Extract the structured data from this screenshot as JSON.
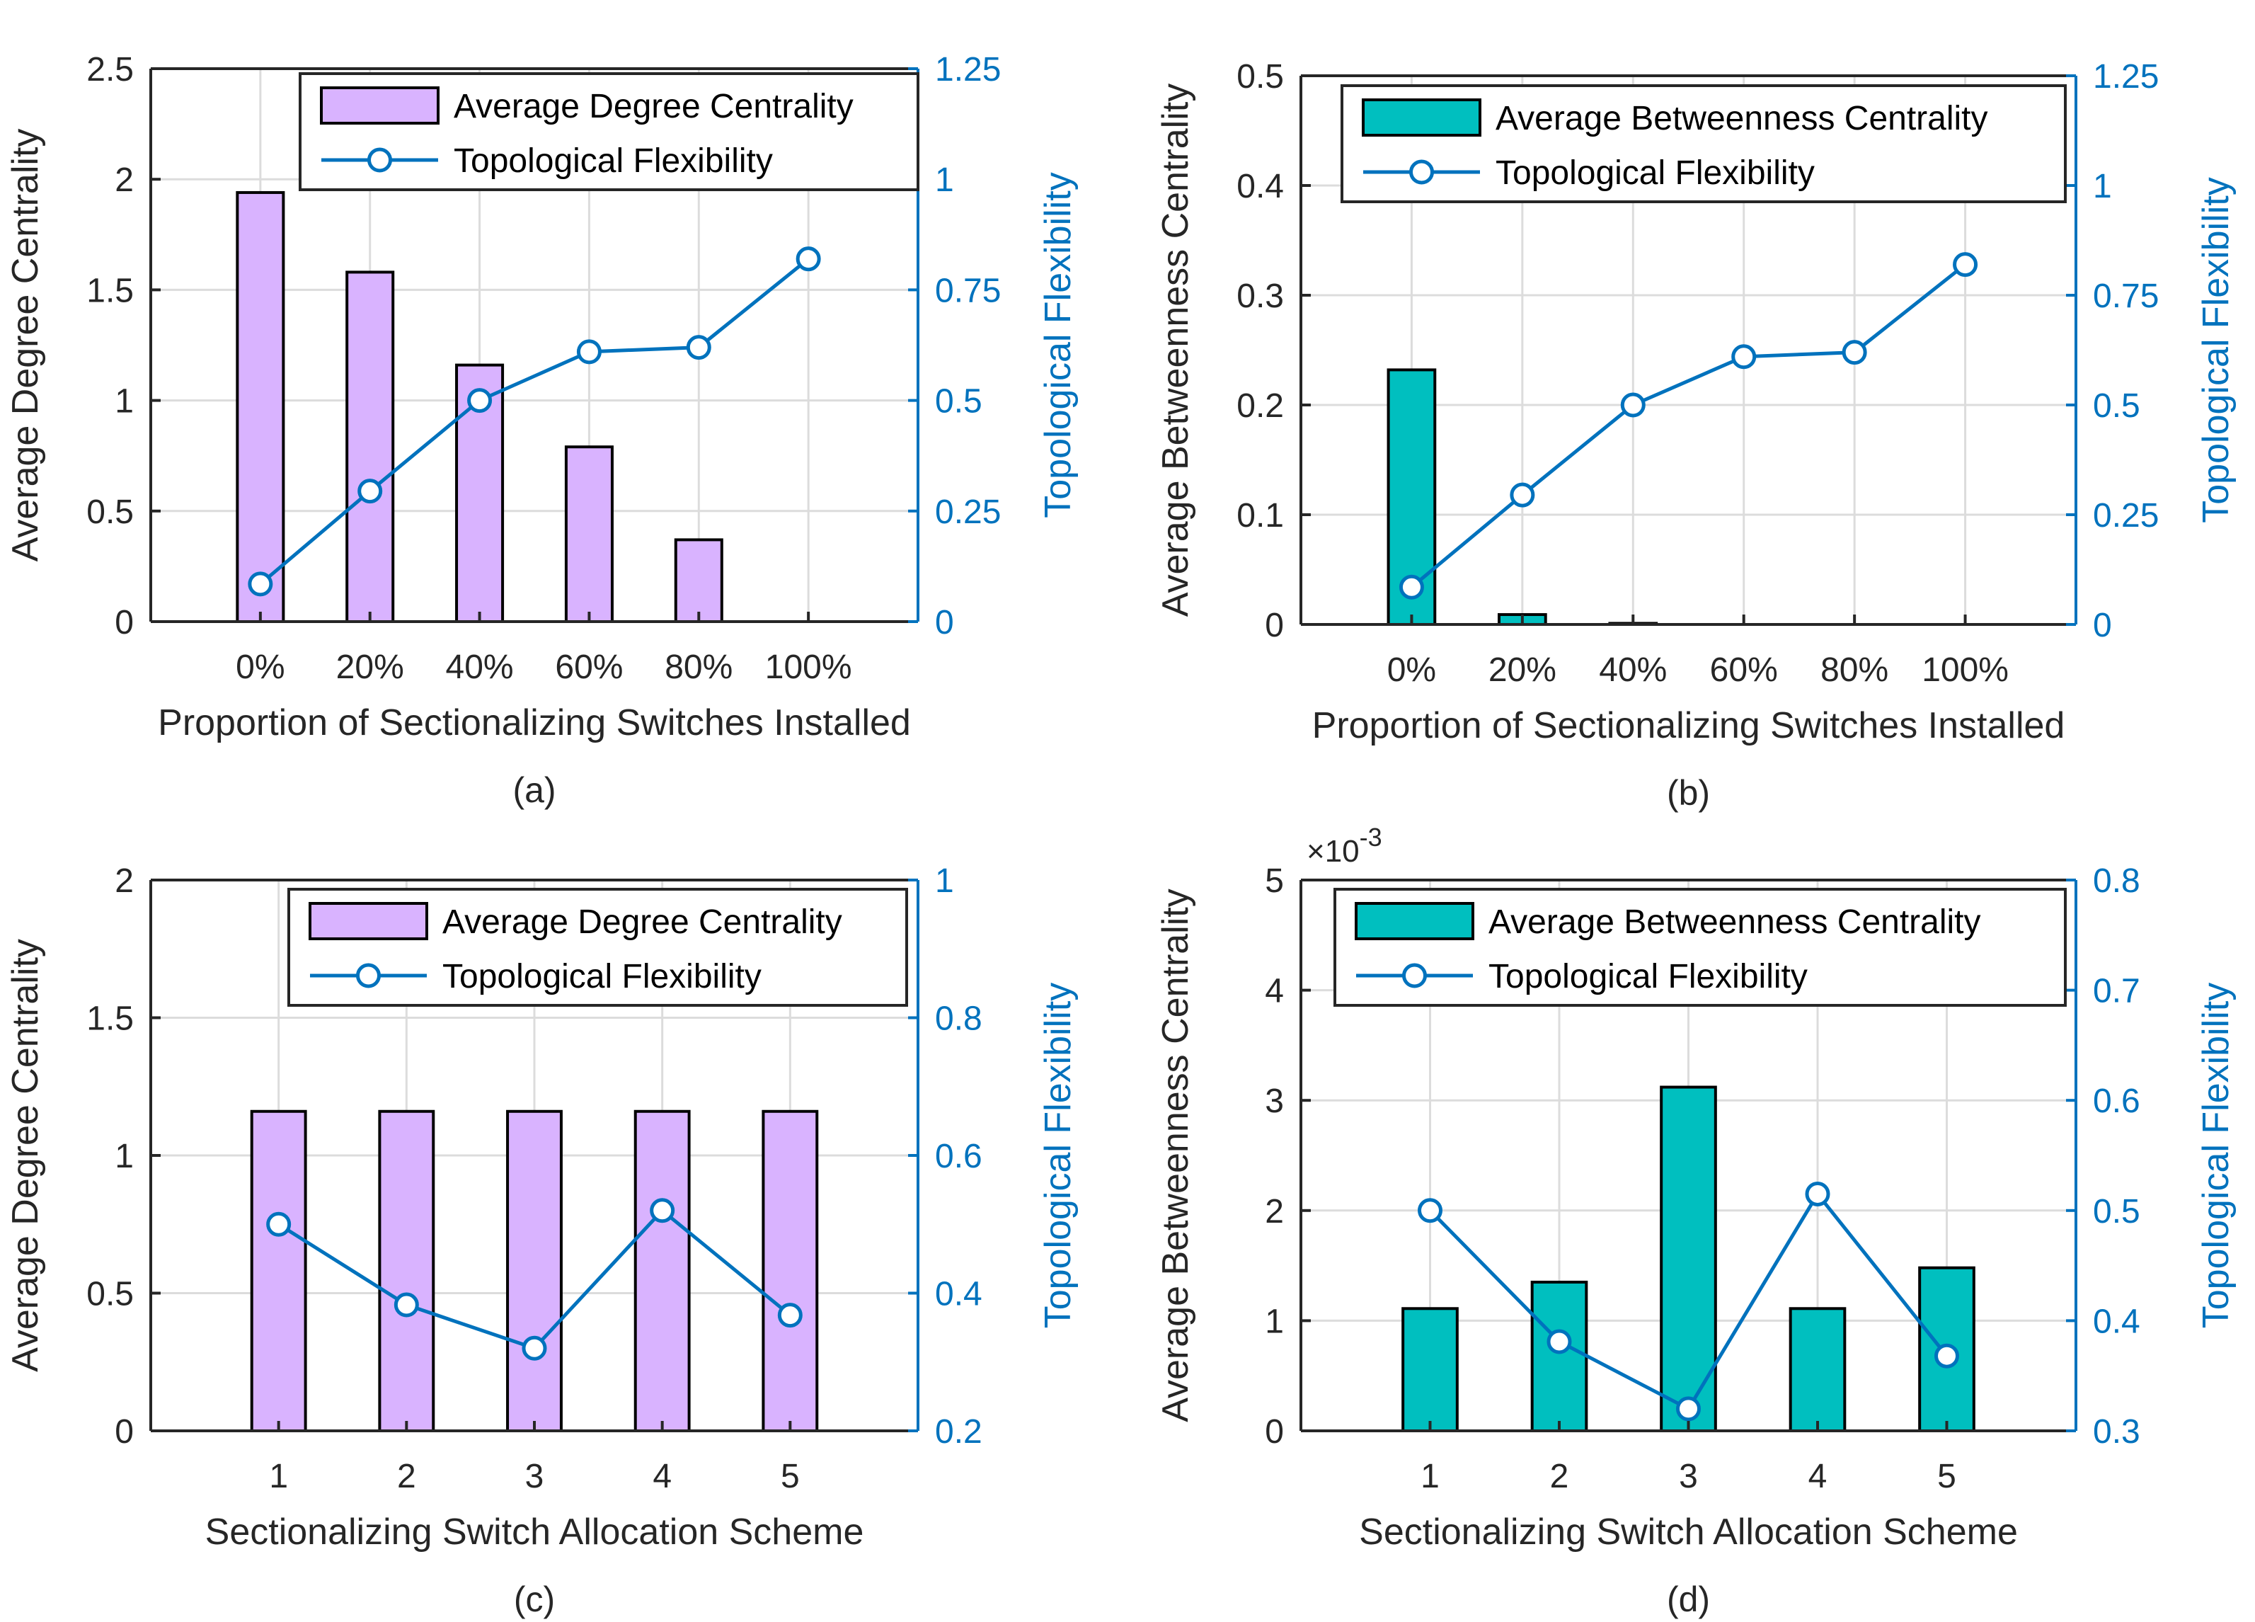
{
  "chart_data": [
    {
      "type": "bar+line",
      "caption": "(a)",
      "xlabel": "Proportion of Sectionalizing Switches Installed",
      "ylabel": "Average Degree Centrality",
      "ylabel_right": "Topological Flexibility",
      "categories": [
        "0%",
        "20%",
        "40%",
        "60%",
        "80%",
        "100%"
      ],
      "bar_series": {
        "name": "Average Degree Centrality",
        "values": [
          1.94,
          1.58,
          1.16,
          0.79,
          0.37,
          0
        ],
        "color": "#D9B3FF"
      },
      "line_series": {
        "name": "Topological Flexibility",
        "values": [
          0.085,
          0.295,
          0.5,
          0.61,
          0.62,
          0.82
        ],
        "color": "#0072BD"
      },
      "ylim": [
        0,
        2.5
      ],
      "yticks": [
        0,
        0.5,
        1,
        1.5,
        2,
        2.5
      ],
      "ytick_labels": [
        "0",
        "0.5",
        "1",
        "1.5",
        "2",
        "2.5"
      ],
      "ylim_right": [
        0,
        1.25
      ],
      "yticks_right": [
        0,
        0.25,
        0.5,
        0.75,
        1,
        1.25
      ],
      "ytick_labels_right": [
        "0",
        "0.25",
        "0.5",
        "0.75",
        "1",
        "1.25"
      ],
      "legend": [
        "Average Degree Centrality",
        "Topological Flexibility"
      ],
      "legend_loc": "top-right"
    },
    {
      "type": "bar+line",
      "caption": "(b)",
      "xlabel": "Proportion of Sectionalizing Switches Installed",
      "ylabel": "Average Betweenness Centrality",
      "ylabel_right": "Topological Flexibility",
      "categories": [
        "0%",
        "20%",
        "40%",
        "60%",
        "80%",
        "100%"
      ],
      "bar_series": {
        "name": "Average Betweenness Centrality",
        "values": [
          0.232,
          0.009,
          0.001,
          0,
          0,
          0
        ],
        "color": "#00BFBF"
      },
      "line_series": {
        "name": "Topological Flexibility",
        "values": [
          0.085,
          0.295,
          0.5,
          0.61,
          0.62,
          0.82
        ],
        "color": "#0072BD"
      },
      "ylim": [
        0,
        0.5
      ],
      "yticks": [
        0,
        0.1,
        0.2,
        0.3,
        0.4,
        0.5
      ],
      "ytick_labels": [
        "0",
        "0.1",
        "0.2",
        "0.3",
        "0.4",
        "0.5"
      ],
      "ylim_right": [
        0,
        1.25
      ],
      "yticks_right": [
        0,
        0.25,
        0.5,
        0.75,
        1,
        1.25
      ],
      "ytick_labels_right": [
        "0",
        "0.25",
        "0.5",
        "0.75",
        "1",
        "1.25"
      ],
      "legend": [
        "Average Betweenness Centrality",
        "Topological Flexibility"
      ],
      "legend_loc": "top-right"
    },
    {
      "type": "bar+line",
      "caption": "(c)",
      "xlabel": "Sectionalizing Switch Allocation Scheme",
      "ylabel": "Average Degree Centrality",
      "ylabel_right": "Topological Flexibility",
      "categories": [
        "1",
        "2",
        "3",
        "4",
        "5"
      ],
      "bar_series": {
        "name": "Average Degree Centrality",
        "values": [
          1.16,
          1.16,
          1.16,
          1.16,
          1.16
        ],
        "color": "#D9B3FF"
      },
      "line_series": {
        "name": "Topological Flexibility",
        "values": [
          0.5,
          0.383,
          0.32,
          0.52,
          0.368
        ],
        "color": "#0072BD"
      },
      "ylim": [
        0,
        2
      ],
      "yticks": [
        0,
        0.5,
        1,
        1.5,
        2
      ],
      "ytick_labels": [
        "0",
        "0.5",
        "1",
        "1.5",
        "2"
      ],
      "ylim_right": [
        0.2,
        1
      ],
      "yticks_right": [
        0.2,
        0.4,
        0.6,
        0.8,
        1
      ],
      "ytick_labels_right": [
        "0.2",
        "0.4",
        "0.6",
        "0.8",
        "1"
      ],
      "legend": [
        "Average Degree Centrality",
        "Topological Flexibility"
      ],
      "legend_loc": "top-right"
    },
    {
      "type": "bar+line",
      "caption": "(d)",
      "xlabel": "Sectionalizing Switch Allocation Scheme",
      "ylabel": "Average Betweenness Centrality",
      "ylabel_right": "Topological Flexibility",
      "exponent_label": "×10",
      "exponent_power": "-3",
      "categories": [
        "1",
        "2",
        "3",
        "4",
        "5"
      ],
      "bar_series": {
        "name": "Average Betweenness Centrality",
        "values": [
          1.11,
          1.35,
          3.12,
          1.11,
          1.48
        ],
        "color": "#00BFBF"
      },
      "line_series": {
        "name": "Topological Flexibility",
        "values": [
          0.5,
          0.381,
          0.32,
          0.515,
          0.368
        ],
        "color": "#0072BD"
      },
      "ylim": [
        0,
        5
      ],
      "yticks": [
        0,
        1,
        2,
        3,
        4,
        5
      ],
      "ytick_labels": [
        "0",
        "1",
        "2",
        "3",
        "4",
        "5"
      ],
      "ylim_right": [
        0.3,
        0.8
      ],
      "yticks_right": [
        0.3,
        0.4,
        0.5,
        0.6,
        0.7,
        0.8
      ],
      "ytick_labels_right": [
        "0.3",
        "0.4",
        "0.5",
        "0.6",
        "0.7",
        "0.8"
      ],
      "legend": [
        "Average Betweenness Centrality",
        "Topological Flexibility"
      ],
      "legend_loc": "top-right"
    }
  ]
}
